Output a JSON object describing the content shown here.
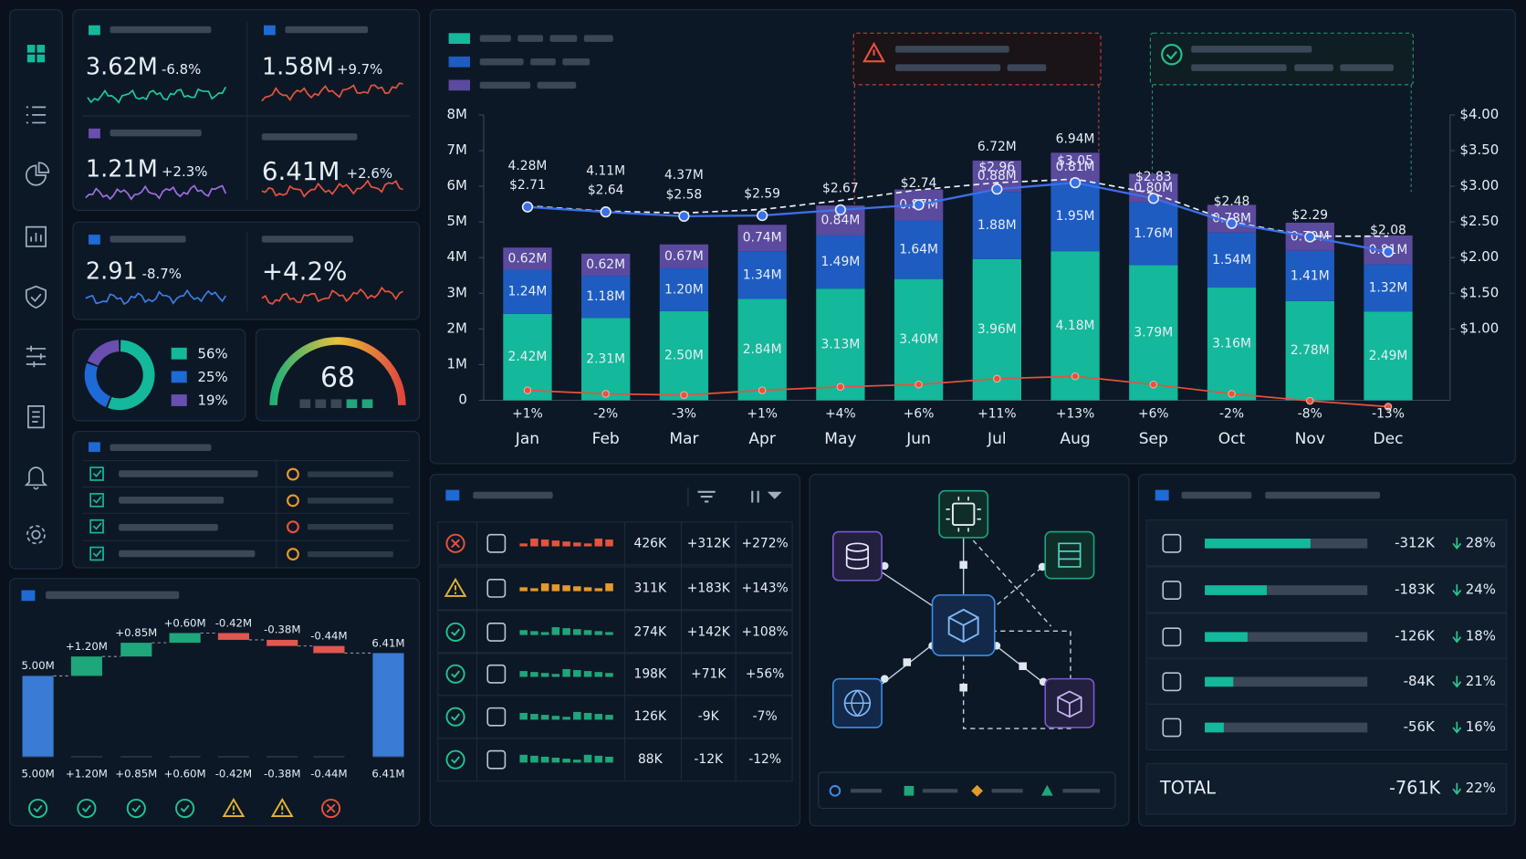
{
  "kpis": [
    {
      "value": "3.62M",
      "change": "-6.8%",
      "color": "#1fc79a"
    },
    {
      "value": "1.58M",
      "change": "+9.7%",
      "color": "#e5533d"
    },
    {
      "value": "1.21M",
      "change": "+2.3%",
      "color": "#9b6fe0"
    },
    {
      "value": "6.41M",
      "change": "+2.6%",
      "color": "#e5533d"
    },
    {
      "value": "2.91",
      "change": "-8.7%",
      "color": "#3b7de0"
    },
    {
      "value": "+4.2%",
      "color": "#e5533d"
    }
  ],
  "gauge": {
    "value": 68
  },
  "chart_data": [
    {
      "type": "bar",
      "stacked": true,
      "categories": [
        "Jan",
        "Feb",
        "Mar",
        "Apr",
        "May",
        "Jun",
        "Jul",
        "Aug",
        "Sep",
        "Oct",
        "Nov",
        "Dec"
      ],
      "series": [
        {
          "color": "#14b89b",
          "values": [
            2420000,
            2310000,
            2500000,
            2840000,
            3130000,
            3400000,
            3960000,
            4180000,
            3790000,
            3160000,
            2780000,
            2490000
          ],
          "value_labels": [
            "2.42M",
            "2.31M",
            "2.50M",
            "2.84M",
            "3.13M",
            "3.40M",
            "3.96M",
            "4.18M",
            "3.79M",
            "3.16M",
            "2.78M",
            "2.49M"
          ]
        },
        {
          "color": "#1e5cc2",
          "values": [
            1240000,
            1180000,
            1200000,
            1340000,
            1490000,
            1640000,
            1880000,
            1950000,
            1760000,
            1540000,
            1410000,
            1320000
          ],
          "value_labels": [
            "1.24M",
            "1.18M",
            "1.20M",
            "1.34M",
            "1.49M",
            "1.64M",
            "1.88M",
            "1.95M",
            "1.76M",
            "1.54M",
            "1.41M",
            "1.32M"
          ]
        },
        {
          "color": "#5b4a9e",
          "values": [
            620000,
            620000,
            670000,
            740000,
            840000,
            870000,
            880000,
            810000,
            800000,
            780000,
            790000,
            810000
          ],
          "value_labels": [
            "0.62M",
            "0.62M",
            "0.67M",
            "0.74M",
            "0.84M",
            "0.87M",
            "0.88M",
            "0.81M",
            "0.80M",
            "0.78M",
            "0.79M",
            "0.81M"
          ]
        },
        {
          "type": "line",
          "dashed": true,
          "color": "#e8eef5",
          "values": [
            5450000,
            5300000,
            5250000,
            5350000,
            5600000,
            5900000,
            6100000,
            6200000,
            5800000,
            5000000,
            4600000,
            4600000
          ]
        },
        {
          "type": "line",
          "axis": "y2",
          "color": "#3b6fe6",
          "values": [
            2.71,
            2.64,
            2.58,
            2.59,
            2.67,
            2.74,
            2.96,
            3.05,
            2.83,
            2.48,
            2.29,
            2.08
          ],
          "value_labels": [
            "$2.71",
            "$2.64",
            "$2.58",
            "$2.59",
            "$2.67",
            "$2.74",
            "$2.96",
            "$3.05",
            "$2.83",
            "$2.48",
            "$2.29",
            "$2.08"
          ]
        }
      ],
      "total_labels": [
        "4.28M",
        "4.11M",
        "4.37M",
        null,
        null,
        null,
        "6.72M",
        "6.94M",
        null,
        null,
        null,
        null
      ],
      "growth": {
        "color": "#e5533d",
        "values": [
          1,
          -2,
          -3,
          1,
          4,
          6,
          11,
          13,
          6,
          -2,
          -8,
          -13
        ],
        "value_labels": [
          "+1%",
          "-2%",
          "-3%",
          "+1%",
          "+4%",
          "+6%",
          "+11%",
          "+13%",
          "+6%",
          "-2%",
          "-8%",
          "-13%"
        ]
      },
      "ylim": [
        0,
        8000000
      ],
      "yticks": [
        0,
        {
          "value": 1000000,
          "label": "1M"
        },
        {
          "value": 2000000,
          "label": "2M"
        },
        {
          "value": 3000000,
          "label": "3M"
        },
        {
          "value": 4000000,
          "label": "4M"
        },
        {
          "value": 5000000,
          "label": "5M"
        },
        {
          "value": 6000000,
          "label": "6M"
        },
        {
          "value": 7000000,
          "label": "7M"
        },
        {
          "value": 8000000,
          "label": "8M"
        }
      ],
      "y2lim": [
        0,
        4
      ],
      "y2ticks": [
        {
          "value": 1,
          "label": "$1.00"
        },
        {
          "value": 1.5,
          "label": "$1.50"
        },
        {
          "value": 2,
          "label": "$2.00"
        },
        {
          "value": 2.5,
          "label": "$2.50"
        },
        {
          "value": 3,
          "label": "$3.00"
        },
        {
          "value": 3.5,
          "label": "$3.50"
        },
        {
          "value": 4,
          "label": "$4.00"
        }
      ]
    },
    {
      "type": "pie",
      "values": [
        56,
        25,
        19
      ],
      "value_labels": [
        "56%",
        "25%",
        "19%"
      ],
      "colors": [
        "#14b89b",
        "#1e6ad6",
        "#6a4fb0"
      ]
    },
    {
      "type": "waterfall",
      "categories": [
        "5.00M",
        "+1.20M",
        "+0.85M",
        "+0.60M",
        "-0.42M",
        "-0.38M",
        "-0.44M",
        "6.41M"
      ],
      "values": [
        5000000,
        1200000,
        850000,
        600000,
        -420000,
        -380000,
        -440000,
        6410000
      ],
      "value_labels": [
        "5.00M",
        "+1.20M",
        "+0.85M",
        "+0.60M",
        "-0.42M",
        "-0.38M",
        "-0.44M",
        "6.41M"
      ],
      "colors": {
        "total": "#3a7bd5",
        "up": "#1fa67a",
        "down": "#e0574f"
      },
      "statuses": [
        "ok",
        "ok",
        "ok",
        "ok",
        "warn",
        "warn",
        "error"
      ]
    },
    {
      "type": "bar",
      "orientation": "horizontal",
      "color": "#14b89b",
      "values": [
        -312000,
        -183000,
        -126000,
        -84000,
        -56000
      ],
      "value_labels": [
        "-312K",
        "-183K",
        "-126K",
        "-84K",
        "-56K"
      ],
      "xlim": [
        0,
        -480000
      ],
      "shares": [
        28,
        24,
        18,
        21,
        16
      ],
      "share_labels": [
        "28%",
        "24%",
        "18%",
        "21%",
        "16%"
      ],
      "total": {
        "label": "TOTAL",
        "value": -761000,
        "value_label": "-761K",
        "share": 22,
        "share_label": "22%"
      }
    }
  ],
  "table": {
    "rows": [
      {
        "status": "error",
        "value": "426K",
        "change": "+312K",
        "pct": "+272%"
      },
      {
        "status": "warn",
        "value": "311K",
        "change": "+183K",
        "pct": "+143%"
      },
      {
        "status": "ok",
        "value": "274K",
        "change": "+142K",
        "pct": "+108%"
      },
      {
        "status": "ok",
        "value": "198K",
        "change": "+71K",
        "pct": "+56%"
      },
      {
        "status": "ok",
        "value": "126K",
        "change": "-9K",
        "pct": "-7%"
      },
      {
        "status": "ok",
        "value": "88K",
        "change": "-12K",
        "pct": "-12%"
      }
    ]
  }
}
